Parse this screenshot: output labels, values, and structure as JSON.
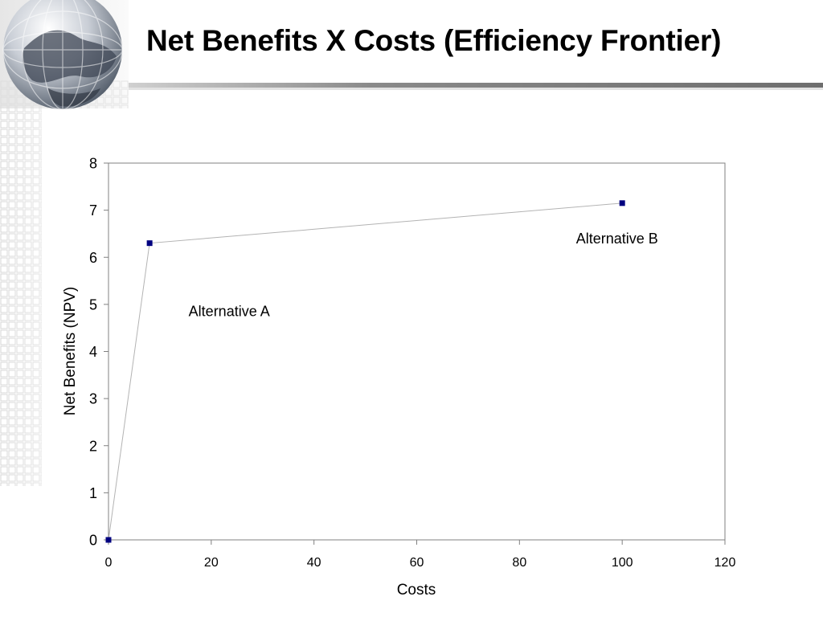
{
  "slide": {
    "title": "Net Benefits X Costs (Efficiency Frontier)"
  },
  "decor": {
    "globe_icon": "globe-icon",
    "grid_pattern": "grid-pattern"
  },
  "chart_data": {
    "type": "line",
    "xlabel": "Costs",
    "ylabel": "Net Benefits (NPV)",
    "xlim": [
      0,
      120
    ],
    "ylim": [
      0,
      8
    ],
    "xticks": [
      0,
      20,
      40,
      60,
      80,
      100,
      120
    ],
    "yticks": [
      0,
      1,
      2,
      3,
      4,
      5,
      6,
      7,
      8
    ],
    "grid": false,
    "legend": "none",
    "series": [
      {
        "color": "#000080",
        "line_color": "#b3b3b3",
        "points": [
          {
            "x": 0,
            "y": 0
          },
          {
            "x": 8,
            "y": 6.3
          },
          {
            "x": 100,
            "y": 7.15
          }
        ]
      }
    ],
    "annotations": [
      {
        "text": "Alternative A",
        "x": 23.5,
        "y": 4.85
      },
      {
        "text": "Alternative B",
        "x": 99,
        "y": 6.4
      }
    ]
  }
}
